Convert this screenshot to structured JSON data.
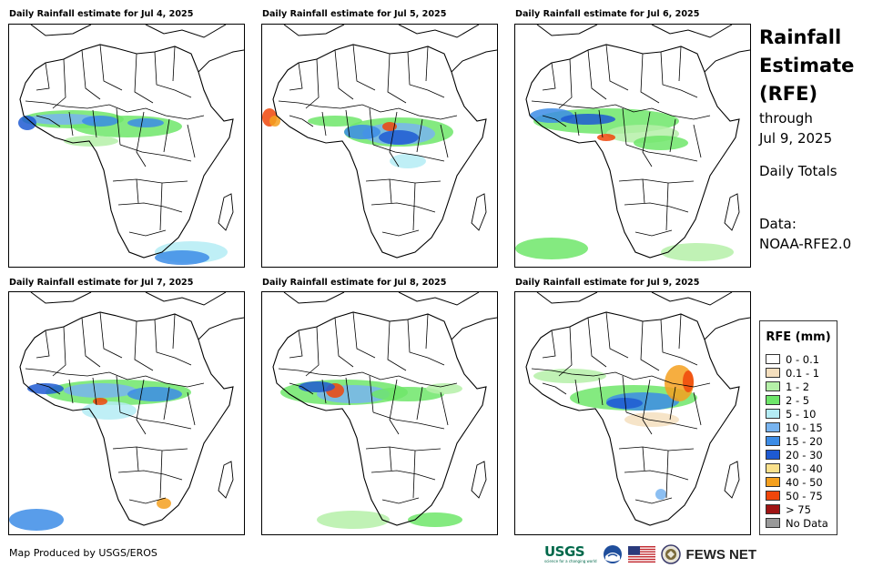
{
  "panels": [
    {
      "title": "Daily Rainfall estimate for Jul 4, 2025",
      "pattern": 0
    },
    {
      "title": "Daily Rainfall estimate for Jul 5, 2025",
      "pattern": 1
    },
    {
      "title": "Daily Rainfall estimate for Jul 6, 2025",
      "pattern": 2
    },
    {
      "title": "Daily Rainfall estimate for Jul 7, 2025",
      "pattern": 3
    },
    {
      "title": "Daily Rainfall estimate for Jul 8, 2025",
      "pattern": 4
    },
    {
      "title": "Daily Rainfall estimate for Jul 9, 2025",
      "pattern": 5
    }
  ],
  "side": {
    "line1": "Rainfall",
    "line2": "Estimate",
    "line3": "(RFE)",
    "line4": "through",
    "line5": "Jul 9, 2025",
    "totals": "Daily Totals",
    "data_label": "Data:",
    "data_source": "NOAA-RFE2.0"
  },
  "legend": {
    "title": "RFE (mm)",
    "items": [
      {
        "label": "0 - 0.1",
        "color": "#ffffff"
      },
      {
        "label": "0.1 - 1",
        "color": "#f5dfbe"
      },
      {
        "label": "1 - 2",
        "color": "#b5f0a8"
      },
      {
        "label": "2 - 5",
        "color": "#6ee66a"
      },
      {
        "label": "5 - 10",
        "color": "#b4ecf4"
      },
      {
        "label": "10 - 15",
        "color": "#78b4f0"
      },
      {
        "label": "15 - 20",
        "color": "#3c8ce6"
      },
      {
        "label": "20 - 30",
        "color": "#1e5ad2"
      },
      {
        "label": "30 - 40",
        "color": "#fae18c"
      },
      {
        "label": "40 - 50",
        "color": "#f5a01e"
      },
      {
        "label": "50 - 75",
        "color": "#f0460a"
      },
      {
        "label": "> 75",
        "color": "#a01414"
      },
      {
        "label": "No Data",
        "color": "#999999"
      }
    ]
  },
  "footer": {
    "credit": "Map Produced by USGS/EROS",
    "usgs_word": "USGS",
    "usgs_tag": "science for a changing world",
    "fews": "FEWS NET"
  }
}
